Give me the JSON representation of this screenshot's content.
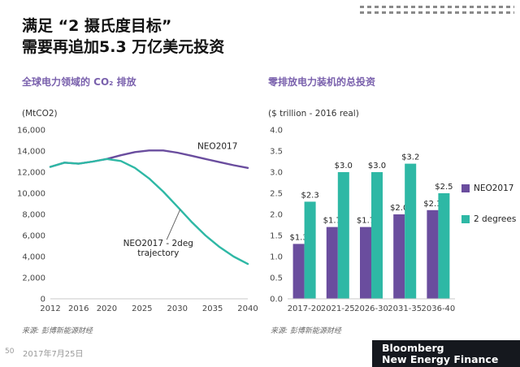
{
  "slide": {
    "title_line1": "满足 “2 摄氏度目标”",
    "title_line2": "需要再追加5.3 万亿美元投资",
    "page_number": "50",
    "date": "2017年7月25日",
    "footer_logo": {
      "line1": "Bloomberg",
      "line2": "New Energy Finance"
    }
  },
  "colors": {
    "purple": "#6a4d9e",
    "teal": "#2eb8a5",
    "title_purple": "#7a61ad"
  },
  "chart_data": [
    {
      "type": "line",
      "title": "全球电力领域的 CO₂ 排放",
      "unit_label": "(MtCO2)",
      "source": "来源: 彭博新能源财经",
      "ylim": [
        0,
        16000
      ],
      "ytick_values": [
        0,
        2000,
        4000,
        6000,
        8000,
        10000,
        12000,
        14000,
        16000
      ],
      "yticks": [
        "0",
        "2,000",
        "4,000",
        "6,000",
        "8,000",
        "10,000",
        "12,000",
        "14,000",
        "16,000"
      ],
      "xticks": [
        2012,
        2016,
        2020,
        2025,
        2030,
        2035,
        2040
      ],
      "x": [
        2012,
        2014,
        2016,
        2018,
        2020,
        2022,
        2024,
        2026,
        2028,
        2030,
        2032,
        2034,
        2036,
        2038,
        2040
      ],
      "series": [
        {
          "name": "NEO2017",
          "color": "#6a4d9e",
          "values": [
            12500,
            12900,
            12800,
            13000,
            13250,
            13600,
            13900,
            14050,
            14050,
            13850,
            13550,
            13250,
            12950,
            12650,
            12400
          ]
        },
        {
          "name": "NEO2017 - 2deg trajectory",
          "color": "#2eb8a5",
          "values": [
            12500,
            12900,
            12800,
            13000,
            13250,
            13050,
            12400,
            11400,
            10150,
            8750,
            7300,
            6000,
            4900,
            4000,
            3300
          ]
        }
      ],
      "annotations": [
        {
          "text": [
            "NEO2017"
          ],
          "year": 2035.7,
          "value": 14200
        },
        {
          "text": [
            "NEO2017 - 2deg",
            "trajectory"
          ],
          "year": 2027.3,
          "value": 5000,
          "leader": {
            "x1_year": 2028.5,
            "y1_value": 5600,
            "x2_year": 2030.4,
            "y2_value": 8460
          }
        }
      ]
    },
    {
      "type": "bar",
      "title": "零排放电力装机的总投资",
      "unit_label": "($ trillion - 2016 real)",
      "source": "来源: 彭博新能源财经",
      "ylim": [
        0,
        4
      ],
      "ytick_values": [
        0,
        0.5,
        1,
        1.5,
        2,
        2.5,
        3,
        3.5,
        4
      ],
      "yticks": [
        "0.0",
        "0.5",
        "1.0",
        "1.5",
        "2.0",
        "2.5",
        "3.0",
        "3.5",
        "4.0"
      ],
      "categories": [
        "2017-20",
        "2021-25",
        "2026-30",
        "2031-35",
        "2036-40"
      ],
      "series": [
        {
          "name": "NEO2017",
          "color": "#6a4d9e",
          "values": [
            1.3,
            1.7,
            1.7,
            2.0,
            2.1
          ],
          "labels": [
            "$1.3",
            "$1.7",
            "$1.7",
            "$2.0",
            "$2.1"
          ]
        },
        {
          "name": "2 degrees",
          "color": "#2eb8a5",
          "values": [
            2.3,
            3.0,
            3.0,
            3.2,
            2.5
          ],
          "labels": [
            "$2.3",
            "$3.0",
            "$3.0",
            "$3.2",
            "$2.5"
          ]
        }
      ],
      "legend_position": "right"
    }
  ]
}
